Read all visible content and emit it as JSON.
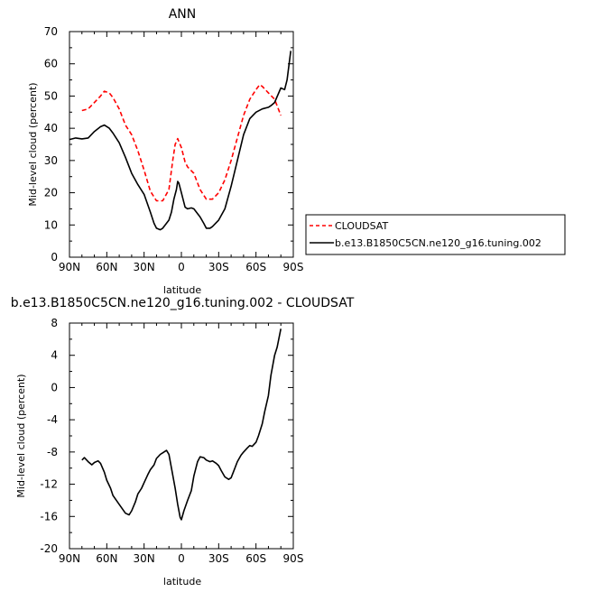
{
  "chart_data": [
    {
      "type": "line",
      "title": "ANN",
      "xlabel": "latitude",
      "ylabel": "Mid-level cloud (percent)",
      "xlim": [
        90,
        -90
      ],
      "ylim": [
        0,
        70
      ],
      "x_ticks": [
        90,
        60,
        30,
        0,
        -30,
        -60,
        -90
      ],
      "x_tick_labels": [
        "90N",
        "60N",
        "30N",
        "0",
        "30S",
        "60S",
        "90S"
      ],
      "y_ticks": [
        0,
        10,
        20,
        30,
        40,
        50,
        60,
        70
      ],
      "y_tick_labels": [
        "0",
        "10",
        "20",
        "30",
        "40",
        "50",
        "60",
        "70"
      ],
      "grid": false,
      "legend_position": "right",
      "series": [
        {
          "name": "CLOUDSAT",
          "color": "#ff0000",
          "dash": "dashed",
          "x": [
            80,
            75,
            70,
            65,
            62,
            58,
            55,
            50,
            45,
            40,
            35,
            30,
            25,
            20,
            15,
            10,
            7,
            5,
            3,
            0,
            -3,
            -5,
            -10,
            -15,
            -20,
            -25,
            -30,
            -35,
            -40,
            -45,
            -50,
            -55,
            -60,
            -63,
            -65,
            -70,
            -75,
            -80
          ],
          "y": [
            45.5,
            46,
            48,
            50,
            51.5,
            51,
            49.5,
            46,
            41,
            38,
            33,
            27,
            20.5,
            17.5,
            17.5,
            21,
            30,
            35,
            36.8,
            34,
            29.5,
            28,
            26,
            21,
            18,
            18,
            20,
            24,
            30,
            37,
            44,
            49,
            52,
            53.5,
            53,
            51,
            49,
            44
          ]
        },
        {
          "name": "b.e13.B1850C5CN.ne120_g16.tuning.002",
          "color": "#000000",
          "dash": "solid",
          "x": [
            90,
            85,
            80,
            75,
            70,
            65,
            62,
            58,
            55,
            50,
            45,
            40,
            35,
            30,
            25,
            22,
            20,
            17,
            15,
            10,
            8,
            6,
            4,
            3,
            2,
            0,
            -3,
            -5,
            -8,
            -10,
            -15,
            -18,
            -20,
            -23,
            -25,
            -30,
            -35,
            -40,
            -45,
            -50,
            -55,
            -60,
            -65,
            -70,
            -72,
            -75,
            -80,
            -83,
            -85,
            -88
          ],
          "y": [
            36.5,
            37,
            36.7,
            37,
            39,
            40.5,
            41,
            40,
            38.5,
            35.5,
            31,
            26,
            22.5,
            19.5,
            14,
            10.5,
            9,
            8.5,
            9,
            11.5,
            14,
            18,
            21,
            23.5,
            23,
            20,
            15.5,
            15,
            15.3,
            15,
            12.5,
            10.5,
            9,
            9,
            9.5,
            11.5,
            15,
            22,
            30,
            38,
            43,
            45,
            46,
            46.5,
            47,
            48,
            52.5,
            52,
            55,
            64
          ]
        }
      ]
    },
    {
      "type": "line",
      "title": "b.e13.B1850C5CN.ne120_g16.tuning.002 - CLOUDSAT",
      "xlabel": "latitude",
      "ylabel": "Mid-level cloud (percent)",
      "xlim": [
        90,
        -90
      ],
      "ylim": [
        -20,
        8
      ],
      "x_ticks": [
        90,
        60,
        30,
        0,
        -30,
        -60,
        -90
      ],
      "x_tick_labels": [
        "90N",
        "60N",
        "30N",
        "0",
        "30S",
        "60S",
        "90S"
      ],
      "y_ticks": [
        -20,
        -16,
        -12,
        -8,
        -4,
        0,
        4,
        8
      ],
      "y_tick_labels": [
        "-20",
        "-16",
        "-12",
        "-8",
        "-4",
        "0",
        "4",
        "8"
      ],
      "grid": false,
      "series": [
        {
          "color": "#000000",
          "dash": "solid",
          "x": [
            80,
            78,
            75,
            72,
            70,
            67,
            65,
            62,
            60,
            57,
            55,
            50,
            45,
            42,
            40,
            37,
            35,
            32,
            30,
            27,
            25,
            22,
            20,
            17,
            15,
            12,
            10,
            8,
            5,
            3,
            1,
            0,
            -2,
            -5,
            -8,
            -10,
            -13,
            -15,
            -18,
            -20,
            -23,
            -25,
            -28,
            -30,
            -32,
            -35,
            -38,
            -40,
            -42,
            -45,
            -48,
            -50,
            -53,
            -55,
            -57,
            -60,
            -62,
            -65,
            -67,
            -70,
            -72,
            -75,
            -77,
            -80
          ],
          "y": [
            -9,
            -8.7,
            -9.2,
            -9.6,
            -9.3,
            -9.1,
            -9.4,
            -10.5,
            -11.5,
            -12.5,
            -13.4,
            -14.5,
            -15.6,
            -15.8,
            -15.3,
            -14.2,
            -13.2,
            -12.5,
            -11.8,
            -10.8,
            -10.2,
            -9.6,
            -8.8,
            -8.3,
            -8.1,
            -7.8,
            -8.3,
            -10,
            -12.5,
            -14.5,
            -16.1,
            -16.4,
            -15.3,
            -14,
            -12.8,
            -11,
            -9.2,
            -8.6,
            -8.7,
            -9,
            -9.2,
            -9.1,
            -9.4,
            -9.7,
            -10.3,
            -11.1,
            -11.4,
            -11.2,
            -10.4,
            -9.2,
            -8.4,
            -8,
            -7.5,
            -7.2,
            -7.3,
            -6.8,
            -6,
            -4.5,
            -3,
            -1,
            1.5,
            4,
            5,
            7.3
          ]
        }
      ]
    }
  ]
}
